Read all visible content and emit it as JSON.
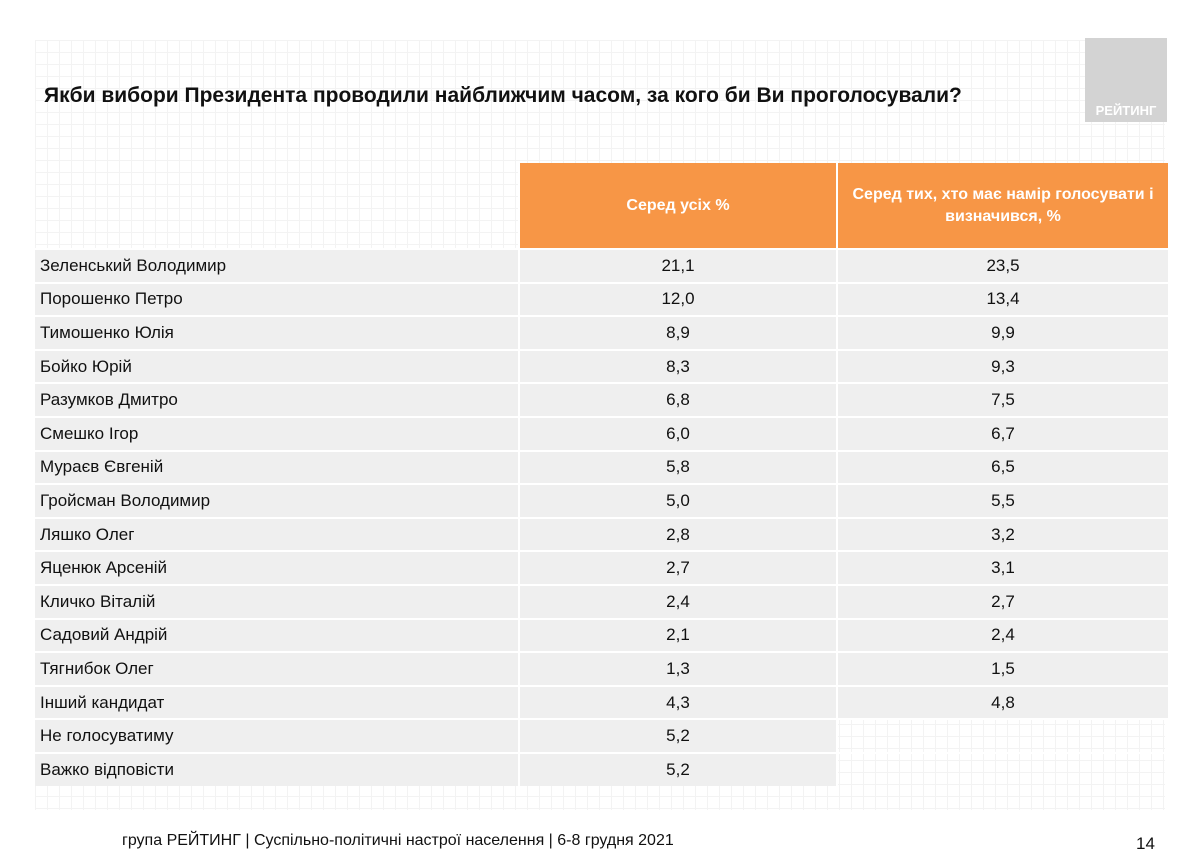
{
  "title": "Якби вибори Президента проводили найближчим часом, за кого би Ви проголосували?",
  "logo_text": "РЕЙТИНГ",
  "table": {
    "headers": [
      "Серед усіх %",
      "Серед тих, хто має намір голосувати і визначився, %"
    ],
    "rows": [
      {
        "name": "Зеленський Володимир",
        "all": "21,1",
        "decided": "23,5"
      },
      {
        "name": "Порошенко Петро",
        "all": "12,0",
        "decided": "13,4"
      },
      {
        "name": "Тимошенко Юлія",
        "all": "8,9",
        "decided": "9,9"
      },
      {
        "name": "Бойко Юрій",
        "all": "8,3",
        "decided": "9,3"
      },
      {
        "name": "Разумков Дмитро",
        "all": "6,8",
        "decided": "7,5"
      },
      {
        "name": "Смешко Ігор",
        "all": "6,0",
        "decided": "6,7"
      },
      {
        "name": "Мураєв Євгеній",
        "all": "5,8",
        "decided": "6,5"
      },
      {
        "name": "Гройсман Володимир",
        "all": "5,0",
        "decided": "5,5"
      },
      {
        "name": "Ляшко Олег",
        "all": "2,8",
        "decided": "3,2"
      },
      {
        "name": "Яценюк Арсеній",
        "all": "2,7",
        "decided": "3,1"
      },
      {
        "name": "Кличко Віталій",
        "all": "2,4",
        "decided": "2,7"
      },
      {
        "name": "Садовий Андрій",
        "all": "2,1",
        "decided": "2,4"
      },
      {
        "name": "Тягнибок Олег",
        "all": "1,3",
        "decided": "1,5"
      },
      {
        "name": "Інший кандидат",
        "all": "4,3",
        "decided": "4,8"
      },
      {
        "name": "Не голосуватиму",
        "all": "5,2",
        "decided": null
      },
      {
        "name": "Важко відповісти",
        "all": "5,2",
        "decided": null
      }
    ]
  },
  "header_color": "#f79646",
  "footer": "група РЕЙТИНГ | Суспільно-політичні настрої населення  | 6-8 грудня 2021",
  "page_number": "14"
}
